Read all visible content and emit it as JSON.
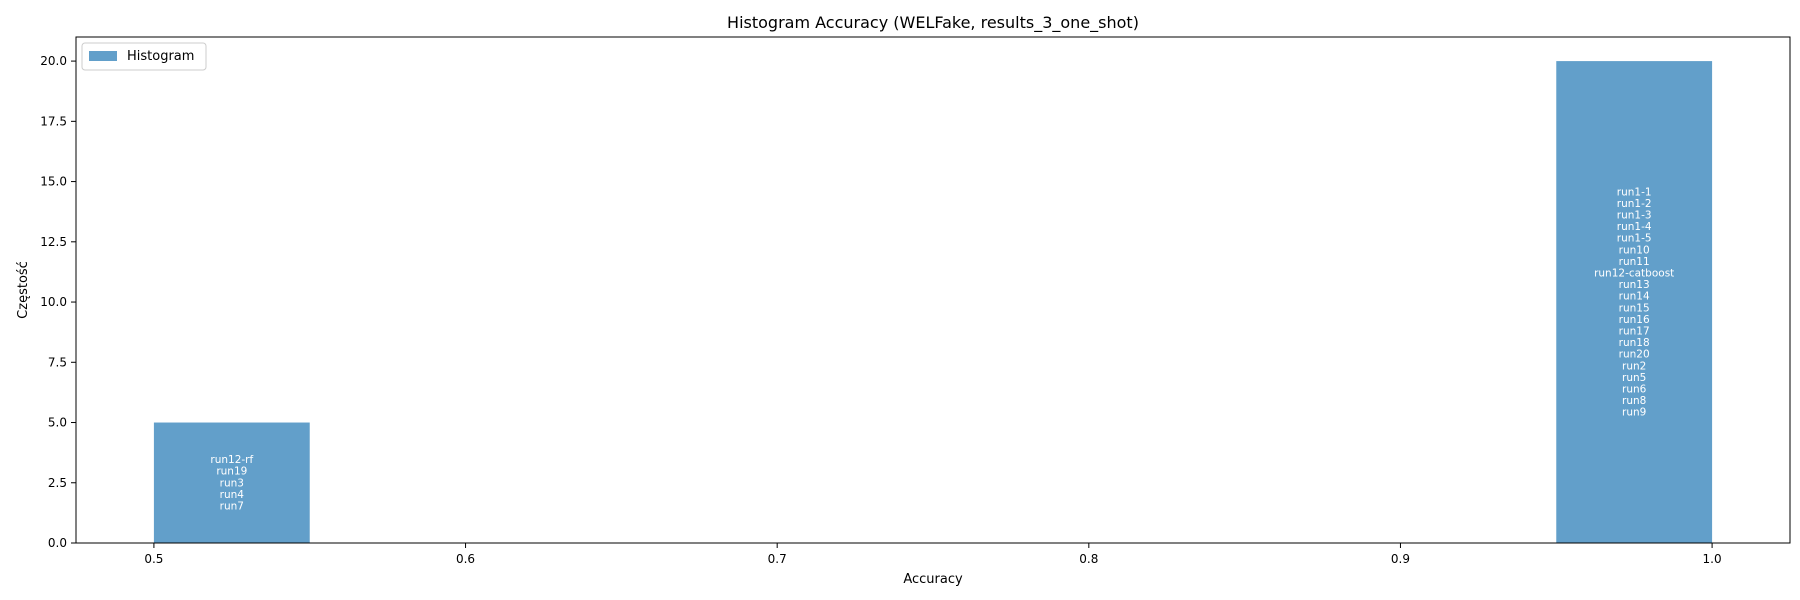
{
  "chart_data": {
    "type": "bar",
    "title": "Histogram Accuracy (WELFake, results_3_one_shot)",
    "xlabel": "Accuracy",
    "ylabel": "Częstość",
    "xlim": [
      0.475,
      1.025
    ],
    "ylim": [
      0,
      21
    ],
    "xticks": [
      "0.5",
      "0.6",
      "0.7",
      "0.8",
      "0.9",
      "1.0"
    ],
    "yticks": [
      "0.0",
      "2.5",
      "5.0",
      "7.5",
      "10.0",
      "12.5",
      "15.0",
      "17.5",
      "20.0"
    ],
    "grid": false,
    "legend_position": "top-left",
    "bar_color": "#629fca",
    "series": [
      {
        "name": "Histogram",
        "bins": [
          {
            "x_start": 0.5,
            "x_end": 0.55,
            "count": 5,
            "labels": [
              "run12-rf",
              "run19",
              "run3",
              "run4",
              "run7"
            ]
          },
          {
            "x_start": 0.95,
            "x_end": 1.0,
            "count": 20,
            "labels": [
              "run1-1",
              "run1-2",
              "run1-3",
              "run1-4",
              "run1-5",
              "run10",
              "run11",
              "run12-catboost",
              "run13",
              "run14",
              "run15",
              "run16",
              "run17",
              "run18",
              "run20",
              "run2",
              "run5",
              "run6",
              "run8",
              "run9"
            ]
          }
        ]
      }
    ]
  }
}
